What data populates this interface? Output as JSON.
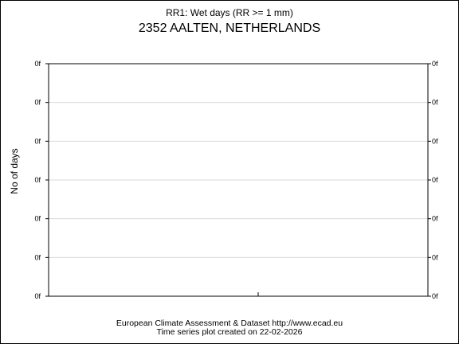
{
  "chart_data": {
    "type": "line",
    "title": "RR1: Wet days (RR >= 1 mm)",
    "subtitle": "2352 AALTEN, NETHERLANDS",
    "xlabel": "",
    "ylabel": "No of days",
    "y_tick_labels": [
      "0f",
      "0f",
      "0f",
      "0f",
      "0f",
      "0f",
      "0f"
    ],
    "series": [],
    "grid": true,
    "legend": "none"
  },
  "footer": {
    "line1": "European Climate Assessment & Dataset  http://www.ecad.eu",
    "line2": "Time series plot created on 22-02-2026"
  },
  "colors": {
    "grid": "#d9d9d9",
    "axis": "#000000"
  }
}
